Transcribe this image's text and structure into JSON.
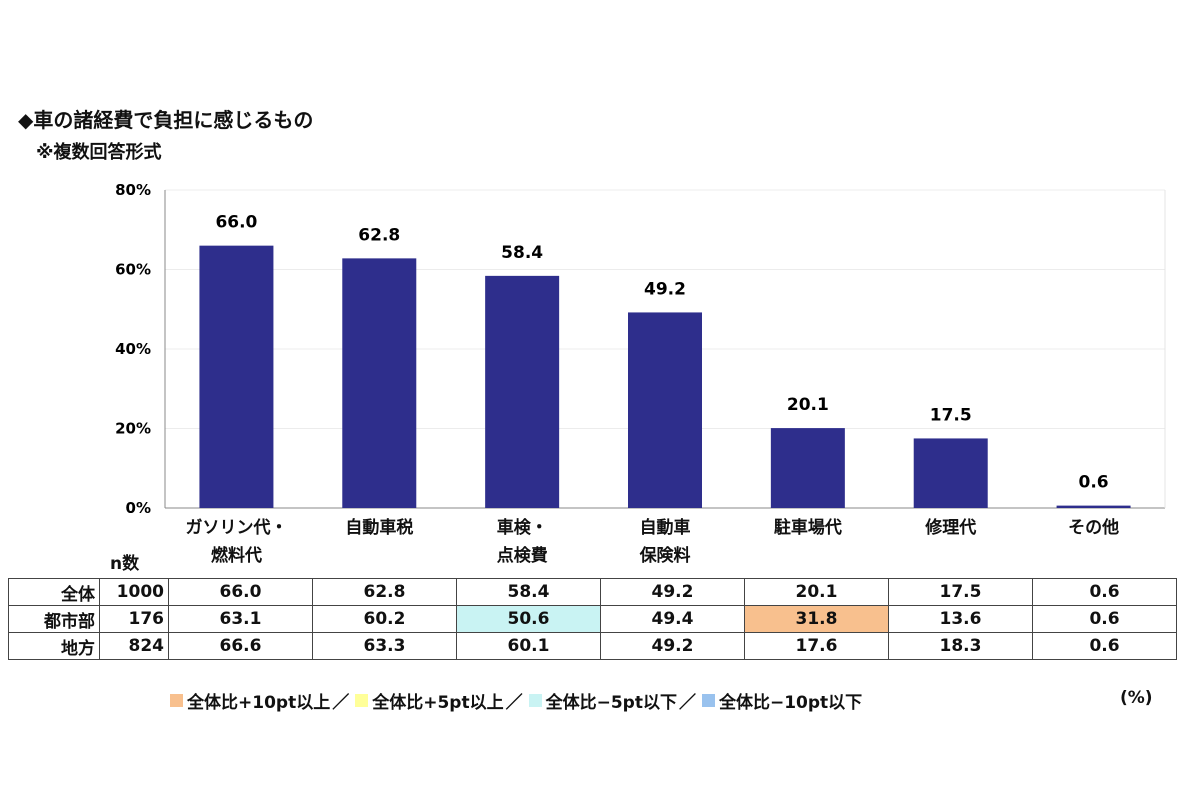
{
  "chart_data": {
    "type": "bar",
    "title": "◆車の諸経費で負担に感じるもの",
    "subtitle": "※複数回答形式",
    "categories": [
      "ガソリン代・\n燃料代",
      "自動車税",
      "車検・\n点検費",
      "自動車\n保険料",
      "駐車場代",
      "修理代",
      "その他"
    ],
    "values": [
      66.0,
      62.8,
      58.4,
      49.2,
      20.1,
      17.5,
      0.6
    ],
    "value_labels": [
      "66.0",
      "62.8",
      "58.4",
      "49.2",
      "20.1",
      "17.5",
      "0.6"
    ],
    "yticks": [
      "0%",
      "20%",
      "40%",
      "60%",
      "80%"
    ],
    "ylim": [
      0,
      80
    ],
    "bar_color": "#2E2E8C",
    "grid": true
  },
  "table": {
    "n_header": "n数",
    "rows": [
      {
        "label": "全体",
        "n": "1000",
        "values": [
          "66.0",
          "62.8",
          "58.4",
          "49.2",
          "20.1",
          "17.5",
          "0.6"
        ],
        "highlights": [
          "",
          "",
          "",
          "",
          "",
          "",
          ""
        ]
      },
      {
        "label": "都市部",
        "n": "176",
        "values": [
          "63.1",
          "60.2",
          "50.6",
          "49.4",
          "31.8",
          "13.6",
          "0.6"
        ],
        "highlights": [
          "",
          "",
          "#C9F3F3",
          "",
          "#F8C08E",
          "",
          ""
        ]
      },
      {
        "label": "地方",
        "n": "824",
        "values": [
          "66.6",
          "63.3",
          "60.1",
          "49.2",
          "17.6",
          "18.3",
          "0.6"
        ],
        "highlights": [
          "",
          "",
          "",
          "",
          "",
          "",
          ""
        ]
      }
    ]
  },
  "legend": {
    "items": [
      {
        "label": "全体比+10pt以上",
        "color": "#F8C08E"
      },
      {
        "label": "全体比+5pt以上",
        "color": "#FFFF99"
      },
      {
        "label": "全体比−5pt以下",
        "color": "#C9F3F3"
      },
      {
        "label": "全体比−10pt以下",
        "color": "#99C2EE"
      }
    ],
    "separator": "／",
    "unit": "(%)"
  }
}
